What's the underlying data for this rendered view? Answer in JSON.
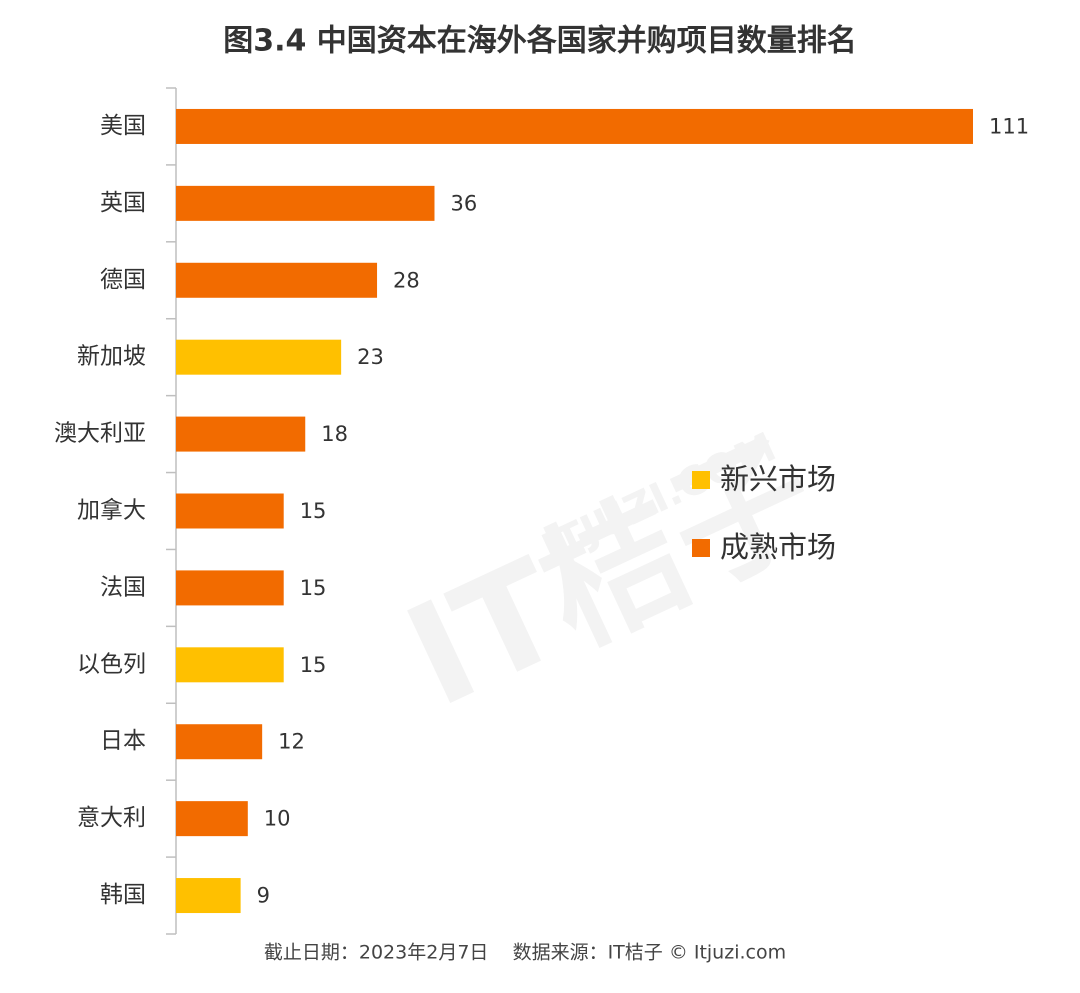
{
  "chart_data": {
    "type": "hbar",
    "title": "图3.4  中国资本在海外各国家并购项目数量排名",
    "categories": [
      "美国",
      "英国",
      "德国",
      "新加坡",
      "澳大利亚",
      "加拿大",
      "法国",
      "以色列",
      "日本",
      "意大利",
      "韩国"
    ],
    "series": [
      {
        "name": "新兴市场",
        "color": "#ffc000",
        "values": [
          null,
          null,
          null,
          23,
          null,
          null,
          null,
          15,
          null,
          null,
          9
        ]
      },
      {
        "name": "成熟市场",
        "color": "#f26b00",
        "values": [
          111,
          36,
          28,
          null,
          18,
          15,
          15,
          null,
          12,
          10,
          null
        ]
      }
    ],
    "legend": "right",
    "footnote": "截止日期：2023年2月7日    数据来源：IT桔子 © Itjuzi.com",
    "watermark": [
      "IT桔子",
      "ITJUZI.COM"
    ]
  }
}
